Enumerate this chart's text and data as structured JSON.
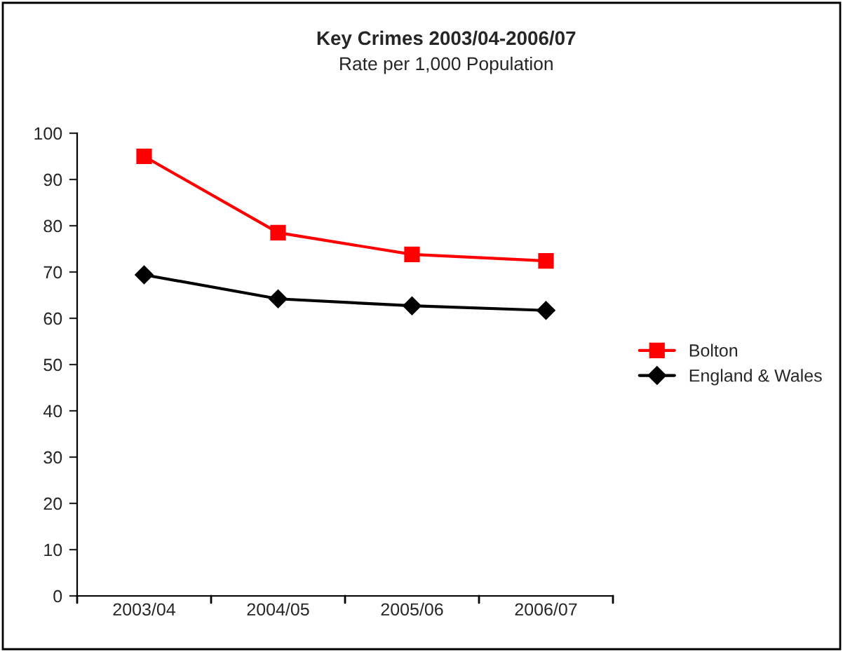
{
  "chart_data": {
    "type": "line",
    "title": "Key Crimes 2003/04-2006/07",
    "subtitle": "Rate per 1,000 Population",
    "categories": [
      "2003/04",
      "2004/05",
      "2005/06",
      "2006/07"
    ],
    "series": [
      {
        "name": "Bolton",
        "color": "#ff0000",
        "marker": "square",
        "values": [
          95.0,
          78.5,
          73.8,
          72.4
        ]
      },
      {
        "name": "England & Wales",
        "color": "#000000",
        "marker": "diamond",
        "values": [
          69.4,
          64.2,
          62.7,
          61.7
        ]
      }
    ],
    "ylim": [
      0,
      100
    ],
    "yticks": [
      0,
      10,
      20,
      30,
      40,
      50,
      60,
      70,
      80,
      90,
      100
    ],
    "grid": false,
    "legend": "right"
  }
}
